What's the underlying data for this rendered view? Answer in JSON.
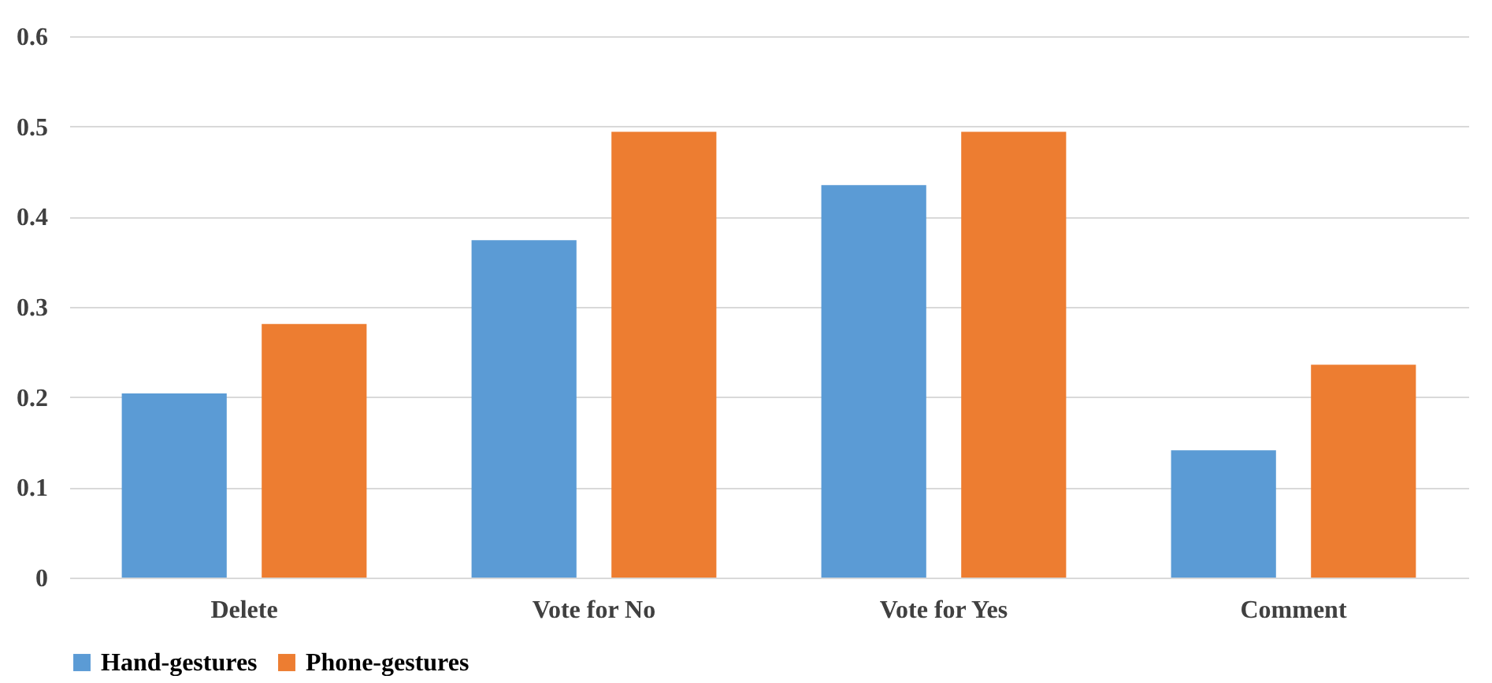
{
  "chart_data": {
    "type": "bar",
    "categories": [
      "Delete",
      "Vote for No",
      "Vote for Yes",
      "Comment"
    ],
    "series": [
      {
        "name": "Hand-gestures",
        "color": "#5b9bd5",
        "values": [
          0.204,
          0.374,
          0.435,
          0.141
        ]
      },
      {
        "name": "Phone-gestures",
        "color": "#ed7d31",
        "values": [
          0.281,
          0.494,
          0.494,
          0.236
        ]
      }
    ],
    "ylim": [
      0,
      0.6
    ],
    "yticks": [
      0,
      0.1,
      0.2,
      0.3,
      0.4,
      0.5,
      0.6
    ],
    "grid": "y",
    "legend": "bottom"
  }
}
